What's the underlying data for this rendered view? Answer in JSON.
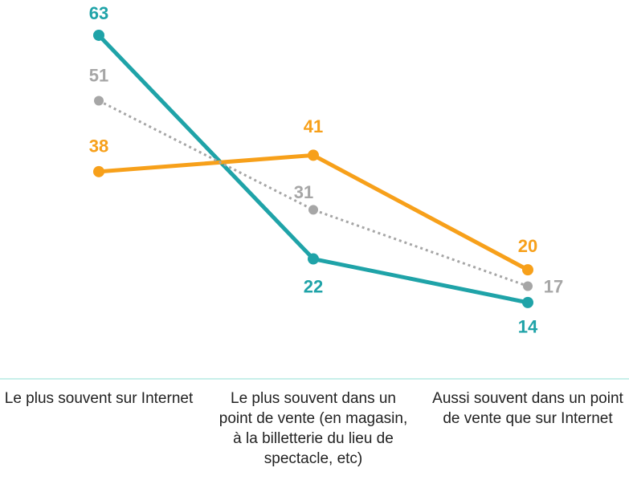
{
  "chart_data": {
    "type": "line",
    "categories": [
      "Le plus souvent sur Internet",
      "Le plus souvent dans un point de vente (en magasin, à la billetterie du lieu de spectacle, etc)",
      "Aussi souvent dans un point de vente que sur Internet"
    ],
    "series": [
      {
        "color": "#1fa3a8",
        "values": [
          63,
          22,
          14
        ]
      },
      {
        "color": "#f7a01a",
        "values": [
          38,
          41,
          20
        ]
      },
      {
        "color": "#a6a6a6",
        "dashed": true,
        "values": [
          51,
          31,
          17
        ]
      }
    ],
    "ylim": [
      0,
      70
    ]
  }
}
